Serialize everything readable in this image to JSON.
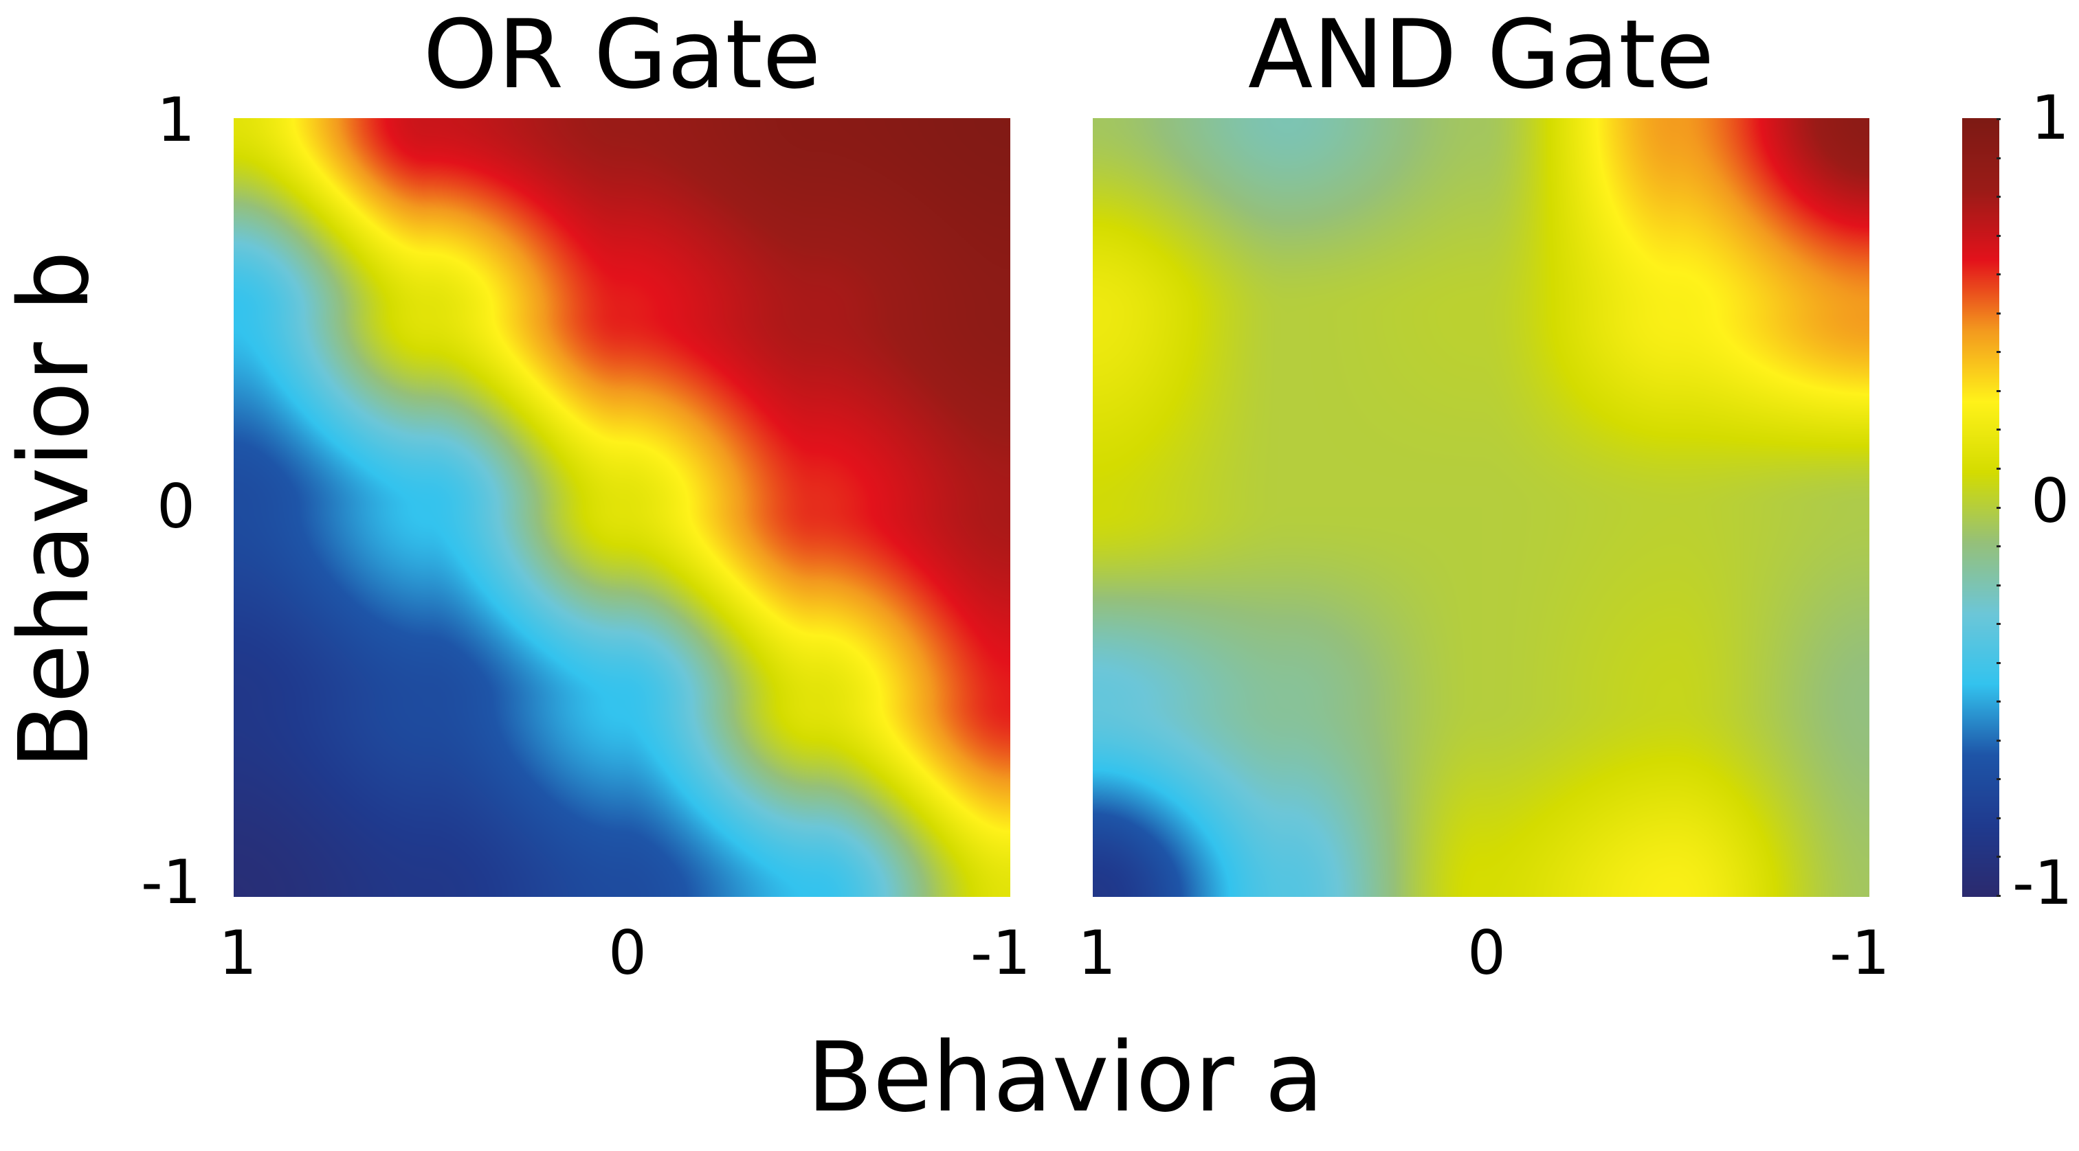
{
  "figure": {
    "xlabel": "Behavior a",
    "ylabel": "Behavior b"
  },
  "chart_data": [
    {
      "type": "heatmap",
      "title": "OR Gate",
      "x_ticks": [
        "1",
        "0",
        "-1"
      ],
      "y_ticks": [
        "1",
        "0",
        "-1"
      ],
      "xlim": [
        1,
        -1
      ],
      "ylim": [
        -1,
        1
      ],
      "value_range": [
        -1,
        1
      ],
      "approx_grid": {
        "x": [
          1,
          0.5,
          0,
          -0.5,
          -1
        ],
        "y": [
          1,
          0.5,
          0,
          -0.5,
          -1
        ],
        "z": [
          [
            0.15,
            0.7,
            0.82,
            0.92,
            0.97
          ],
          [
            -0.45,
            0.15,
            0.62,
            0.78,
            0.9
          ],
          [
            -0.7,
            -0.45,
            0.15,
            0.6,
            0.78
          ],
          [
            -0.85,
            -0.7,
            -0.45,
            0.15,
            0.62
          ],
          [
            -0.95,
            -0.85,
            -0.7,
            -0.45,
            0.15
          ]
        ]
      }
    },
    {
      "type": "heatmap",
      "title": "AND Gate",
      "x_ticks": [
        "1",
        "0",
        "-1"
      ],
      "y_ticks": [],
      "xlim": [
        1,
        -1
      ],
      "ylim": [
        -1,
        1
      ],
      "value_range": [
        -1,
        1
      ],
      "approx_grid": {
        "x": [
          1,
          0.5,
          0,
          -0.5,
          -1
        ],
        "y": [
          1,
          0.5,
          0,
          -0.5,
          -1
        ],
        "z": [
          [
            -0.05,
            -0.2,
            -0.05,
            0.45,
            0.9
          ],
          [
            0.2,
            0.0,
            0.02,
            0.25,
            0.45
          ],
          [
            0.08,
            0.0,
            0.0,
            0.02,
            -0.02
          ],
          [
            -0.3,
            -0.15,
            0.0,
            0.05,
            -0.1
          ],
          [
            -0.85,
            -0.35,
            0.1,
            0.25,
            -0.05
          ]
        ]
      }
    }
  ],
  "colorbar": {
    "ticks": [
      "1",
      "0",
      "-1"
    ],
    "range": [
      -1,
      1
    ],
    "colormap": [
      "#2b2a6e",
      "#1f3a8e",
      "#1e55a8",
      "#33c3ee",
      "#6cc6d8",
      "#95c07a",
      "#d4dc00",
      "#fff21a",
      "#f39a1e",
      "#e3121b",
      "#9a1b17",
      "#7d1a14"
    ]
  }
}
